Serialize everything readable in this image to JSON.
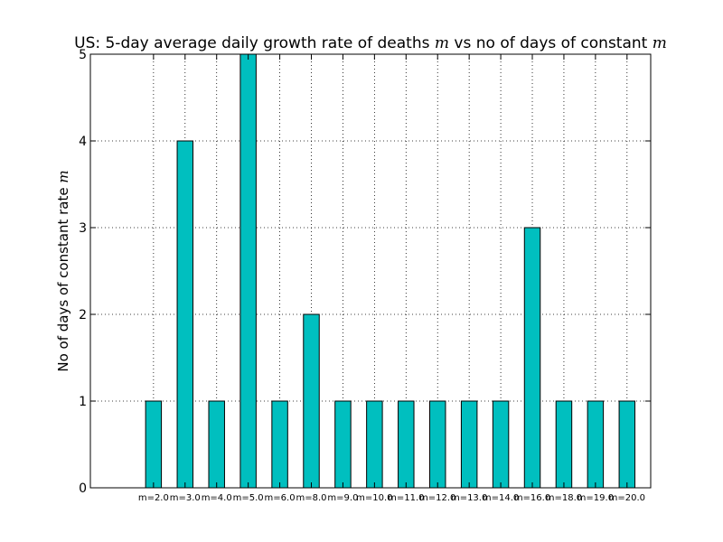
{
  "chart_data": {
    "type": "bar",
    "title_prefix": "US: 5-day average daily growth rate of deaths ",
    "title_var1": "m",
    "title_middle": " vs no of days of constant ",
    "title_var2": "m",
    "ylabel_prefix": "No of days of constant rate ",
    "ylabel_var": "m",
    "xlabel": "",
    "categories": [
      "m=2.0",
      "m=3.0",
      "m=4.0",
      "m=5.0",
      "m=6.0",
      "m=8.0",
      "m=9.0",
      "m=10.0",
      "m=11.0",
      "m=12.0",
      "m=13.0",
      "m=14.0",
      "m=16.0",
      "m=18.0",
      "m=19.0",
      "m=20.0"
    ],
    "values": [
      1,
      4,
      1,
      5,
      1,
      2,
      1,
      1,
      1,
      1,
      1,
      1,
      3,
      1,
      1,
      1
    ],
    "ylim": [
      0,
      5
    ],
    "yticks": [
      "0",
      "1",
      "2",
      "3",
      "4",
      "5"
    ],
    "grid": true,
    "bar_color": "#00bfbf",
    "edge_color": "#000000"
  }
}
